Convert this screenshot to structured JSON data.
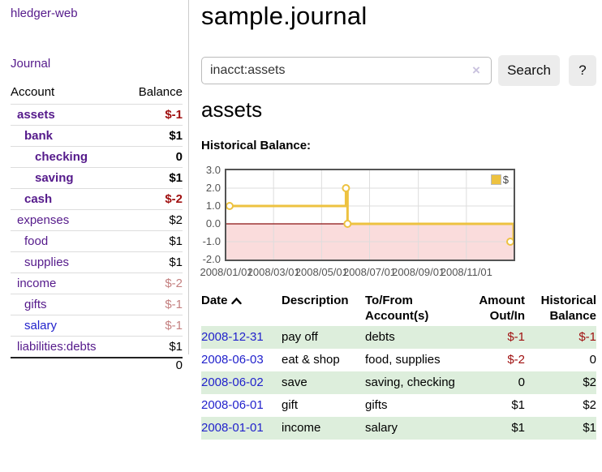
{
  "app": {
    "brand": "hledger-web"
  },
  "nav": {
    "journal_label": "Journal"
  },
  "sidebar_table": {
    "headers": {
      "account": "Account",
      "balance": "Balance"
    },
    "rows": [
      {
        "name": "assets",
        "balance": "$-1",
        "indent": 1,
        "emph": true,
        "neg": true,
        "dim": false,
        "blue": false
      },
      {
        "name": "bank",
        "balance": "$1",
        "indent": 2,
        "emph": true,
        "neg": false,
        "dim": false,
        "blue": false
      },
      {
        "name": "checking",
        "balance": "0",
        "indent": 3,
        "emph": true,
        "neg": false,
        "dim": false,
        "blue": false
      },
      {
        "name": "saving",
        "balance": "$1",
        "indent": 3,
        "emph": true,
        "neg": false,
        "dim": false,
        "blue": false
      },
      {
        "name": "cash",
        "balance": "$-2",
        "indent": 2,
        "emph": true,
        "neg": true,
        "dim": false,
        "blue": false
      },
      {
        "name": "expenses",
        "balance": "$2",
        "indent": 1,
        "emph": false,
        "neg": false,
        "dim": false,
        "blue": false
      },
      {
        "name": "food",
        "balance": "$1",
        "indent": 2,
        "emph": false,
        "neg": false,
        "dim": false,
        "blue": false
      },
      {
        "name": "supplies",
        "balance": "$1",
        "indent": 2,
        "emph": false,
        "neg": false,
        "dim": false,
        "blue": false
      },
      {
        "name": "income",
        "balance": "$-2",
        "indent": 1,
        "emph": false,
        "neg": true,
        "dim": true,
        "blue": false
      },
      {
        "name": "gifts",
        "balance": "$-1",
        "indent": 2,
        "emph": false,
        "neg": true,
        "dim": true,
        "blue": false
      },
      {
        "name": "salary",
        "balance": "$-1",
        "indent": 2,
        "emph": false,
        "neg": true,
        "dim": true,
        "blue": true
      },
      {
        "name": "liabilities:debts",
        "balance": "$1",
        "indent": 1,
        "emph": false,
        "neg": false,
        "dim": false,
        "blue": false
      }
    ],
    "total": "0"
  },
  "header": {
    "title": "sample.journal"
  },
  "search": {
    "value": "inacct:assets",
    "clear_icon": "×",
    "button_label": "Search",
    "help_label": "?"
  },
  "account_page": {
    "title": "assets",
    "chart_label": "Historical Balance:"
  },
  "chart_data": {
    "type": "line",
    "step": true,
    "title": "Historical Balance:",
    "legend": [
      {
        "name": "$",
        "color": "#EDC240"
      }
    ],
    "legend_position": "top-right",
    "grid": true,
    "ylim": [
      -2,
      3
    ],
    "y_ticks": [
      "3.0",
      "2.0",
      "1.0",
      "0.0",
      "-1.0",
      "-2.0"
    ],
    "x_range": [
      "2008-01-01",
      "2008-12-31"
    ],
    "x_ticks": [
      "2008/01/01",
      "2008/03/01",
      "2008/05/01",
      "2008/07/01",
      "2008/09/01",
      "2008/11/01"
    ],
    "series": [
      {
        "name": "$",
        "color": "#EDC240",
        "points": [
          {
            "x": "2008-01-01",
            "y": 1
          },
          {
            "x": "2008-06-01",
            "y": 2
          },
          {
            "x": "2008-06-03",
            "y": 0
          },
          {
            "x": "2008-12-31",
            "y": -1
          }
        ]
      }
    ],
    "zero_line_color": "#8B1010",
    "negative_region_color": "#FADCDC"
  },
  "register": {
    "headers": [
      "Date",
      "Description",
      "To/From Account(s)",
      "Amount Out/In",
      "Historical Balance"
    ],
    "sort_icon": "caret-up",
    "rows": [
      {
        "date": "2008-12-31",
        "description": "pay off",
        "accounts": "debts",
        "amount": "$-1",
        "balance": "$-1"
      },
      {
        "date": "2008-06-03",
        "description": "eat & shop",
        "accounts": "food, supplies",
        "amount": "$-2",
        "balance": "0"
      },
      {
        "date": "2008-06-02",
        "description": "save",
        "accounts": "saving, checking",
        "amount": "0",
        "balance": "$2"
      },
      {
        "date": "2008-06-01",
        "description": "gift",
        "accounts": "gifts",
        "amount": "$1",
        "balance": "$2"
      },
      {
        "date": "2008-01-01",
        "description": "income",
        "accounts": "salary",
        "amount": "$1",
        "balance": "$1"
      }
    ]
  }
}
